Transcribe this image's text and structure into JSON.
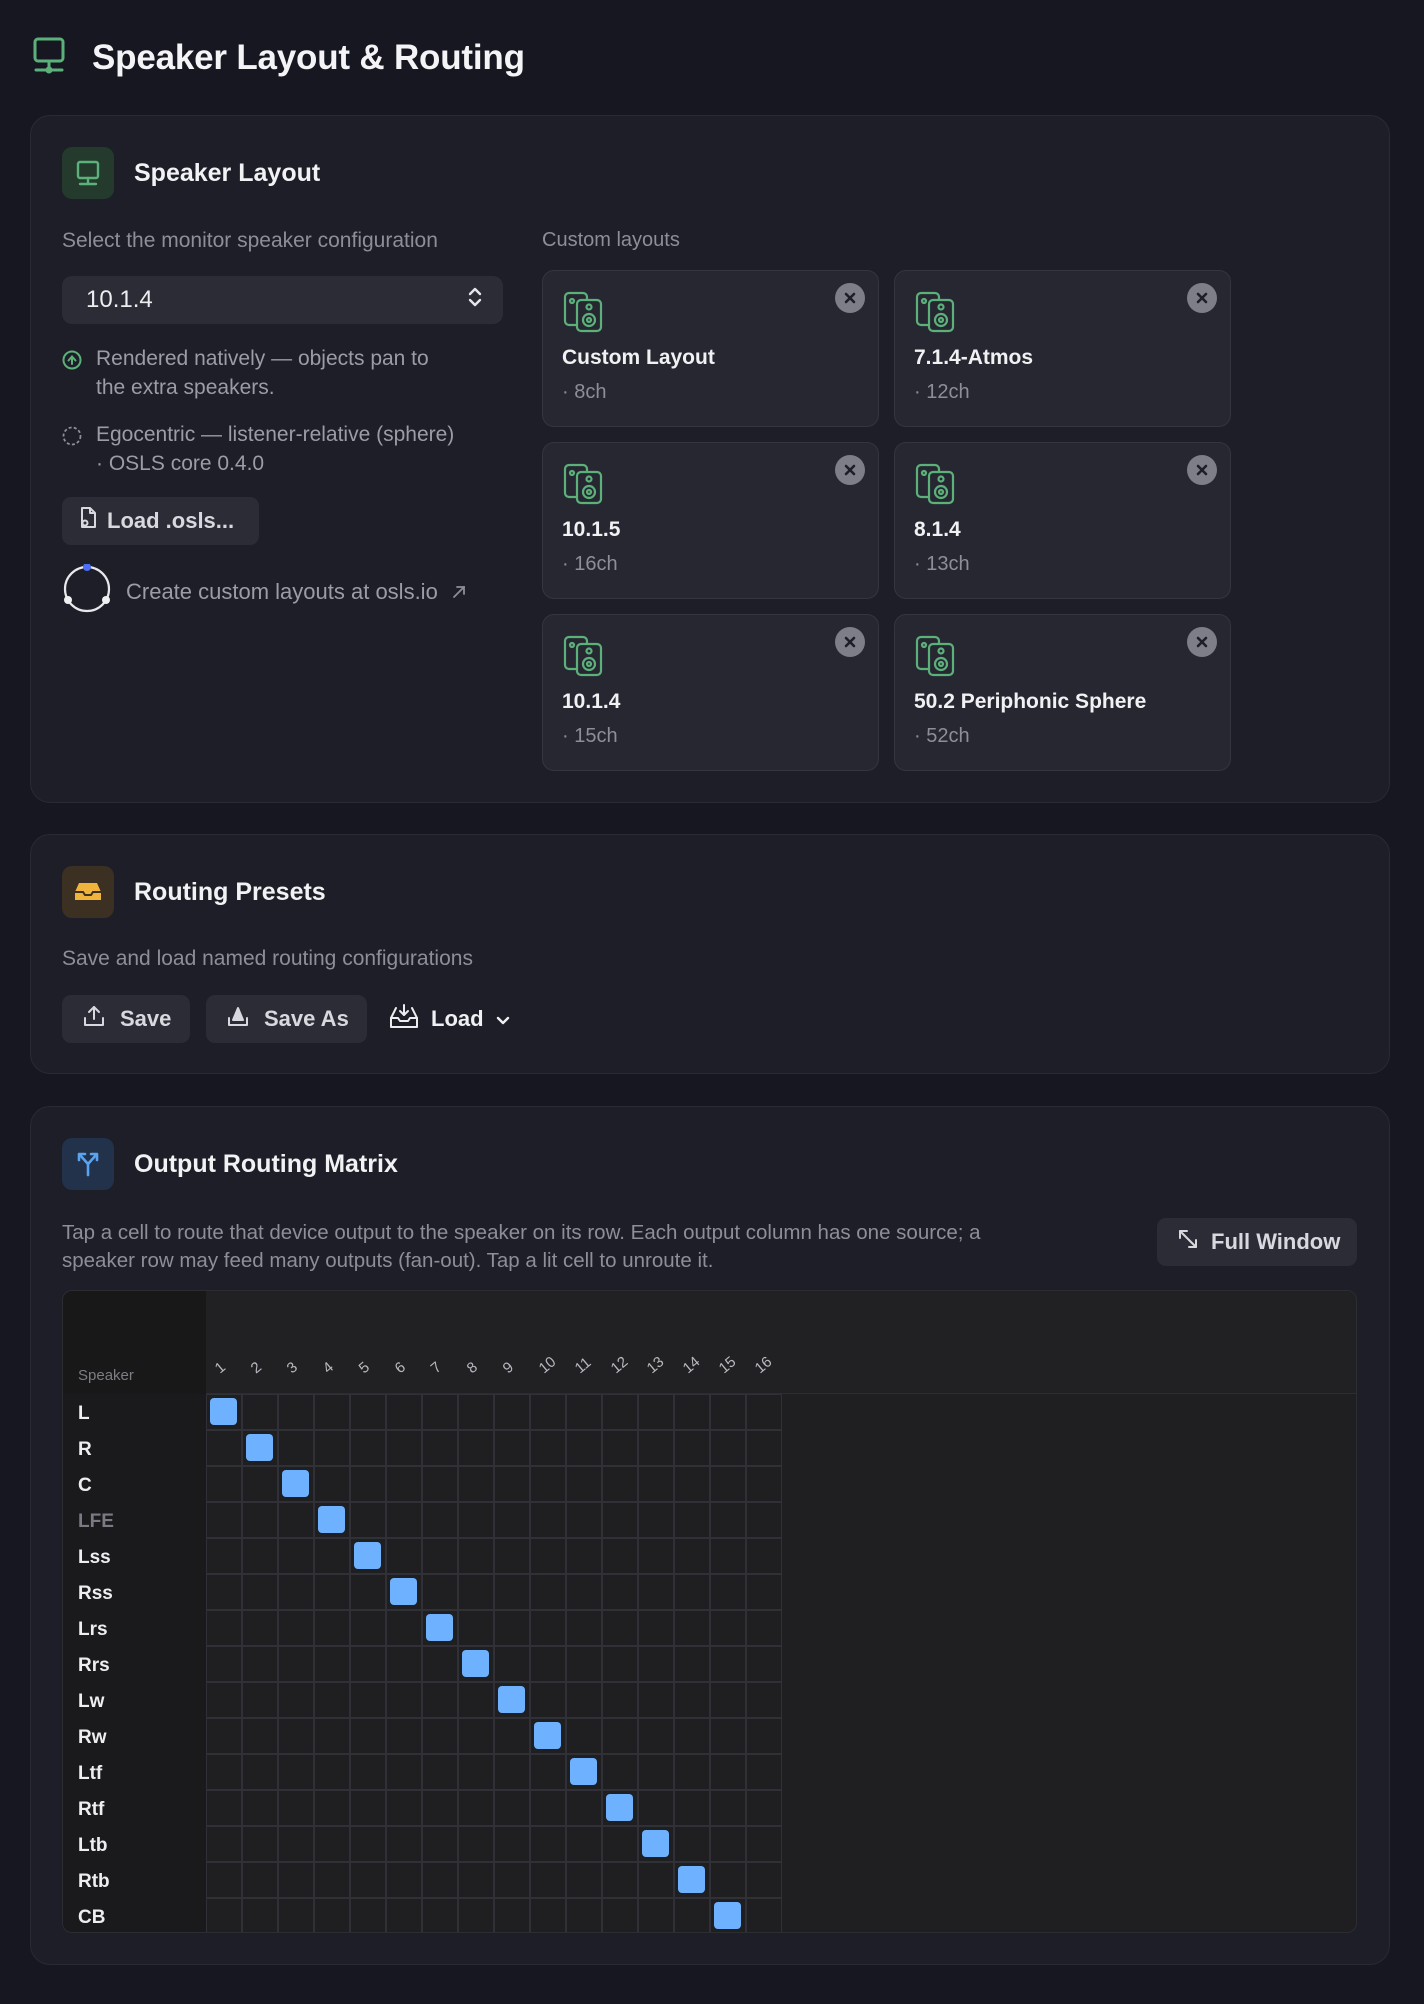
{
  "page": {
    "title": "Speaker Layout & Routing",
    "icon": "monitor-icon"
  },
  "layout_card": {
    "title": "Speaker Layout",
    "description": "Select the monitor speaker configuration",
    "select_value": "10.1.4",
    "option_native": {
      "line1": "Rendered natively — objects pan to",
      "line2": "the extra speakers."
    },
    "option_ego": {
      "line1": "Egocentric — listener-relative (sphere)",
      "line2": "·  OSLS core 0.4.0"
    },
    "load_button": "Load .osls...",
    "create_link": "Create custom layouts at osls.io",
    "custom_label": "Custom layouts",
    "custom_layouts": [
      {
        "name": "Custom Layout",
        "channels": "· 8ch"
      },
      {
        "name": "7.1.4-Atmos",
        "channels": "· 12ch"
      },
      {
        "name": "10.1.5",
        "channels": "· 16ch"
      },
      {
        "name": "8.1.4",
        "channels": "· 13ch"
      },
      {
        "name": "10.1.4",
        "channels": "· 15ch"
      },
      {
        "name": "50.2 Periphonic Sphere",
        "channels": "· 52ch"
      }
    ]
  },
  "presets_card": {
    "title": "Routing Presets",
    "description": "Save and load named routing configurations",
    "save_label": "Save",
    "save_as_label": "Save As",
    "load_label": "Load"
  },
  "matrix_card": {
    "title": "Output Routing Matrix",
    "description_line1": "Tap a cell to route that device output to the speaker on its row. Each output column has one source; a",
    "description_line2": "speaker row may feed many outputs (fan-out). Tap a lit cell to unroute it.",
    "full_window_label": "Full Window",
    "speaker_header": "Speaker",
    "outputs": [
      "1",
      "2",
      "3",
      "4",
      "5",
      "6",
      "7",
      "8",
      "9",
      "10",
      "11",
      "12",
      "13",
      "14",
      "15",
      "16"
    ],
    "speakers": [
      "L",
      "R",
      "C",
      "LFE",
      "Lss",
      "Rss",
      "Lrs",
      "Rrs",
      "Lw",
      "Rw",
      "Ltf",
      "Rtf",
      "Ltb",
      "Rtb",
      "CB"
    ],
    "dimmed_speakers": [
      "LFE"
    ],
    "routes": [
      [
        0,
        0
      ],
      [
        1,
        1
      ],
      [
        2,
        2
      ],
      [
        3,
        3
      ],
      [
        4,
        4
      ],
      [
        5,
        5
      ],
      [
        6,
        6
      ],
      [
        7,
        7
      ],
      [
        8,
        8
      ],
      [
        9,
        9
      ],
      [
        10,
        10
      ],
      [
        11,
        11
      ],
      [
        12,
        12
      ],
      [
        13,
        13
      ],
      [
        14,
        14
      ]
    ]
  },
  "colors": {
    "accent_green": "#5cb07a",
    "accent_amber": "#f0b43c",
    "accent_blue": "#5aa3f0",
    "routed_cell": "#6eb2ff"
  }
}
